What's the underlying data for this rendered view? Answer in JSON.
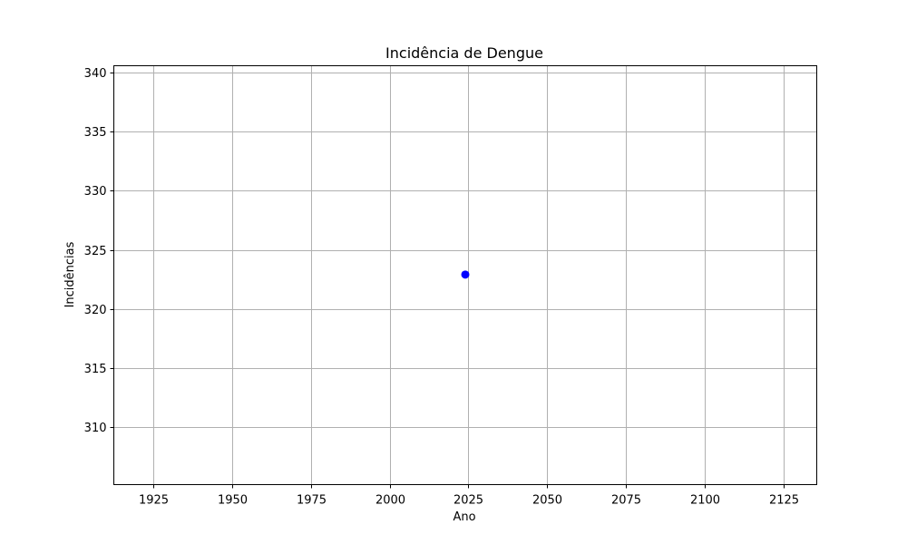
{
  "chart_data": {
    "type": "scatter",
    "title": "Incidência de Dengue",
    "xlabel": "Ano",
    "ylabel": "Incidências",
    "xlim": [
      1912.5,
      2135.5
    ],
    "ylim": [
      305.1,
      340.6
    ],
    "xticks": [
      1925,
      1950,
      1975,
      2000,
      2025,
      2050,
      2075,
      2100,
      2125
    ],
    "yticks": [
      310,
      315,
      320,
      325,
      330,
      335,
      340
    ],
    "grid": true,
    "series": [
      {
        "color": "#0000ff",
        "points": [
          {
            "x": 2024,
            "y": 322.9
          }
        ]
      }
    ]
  }
}
